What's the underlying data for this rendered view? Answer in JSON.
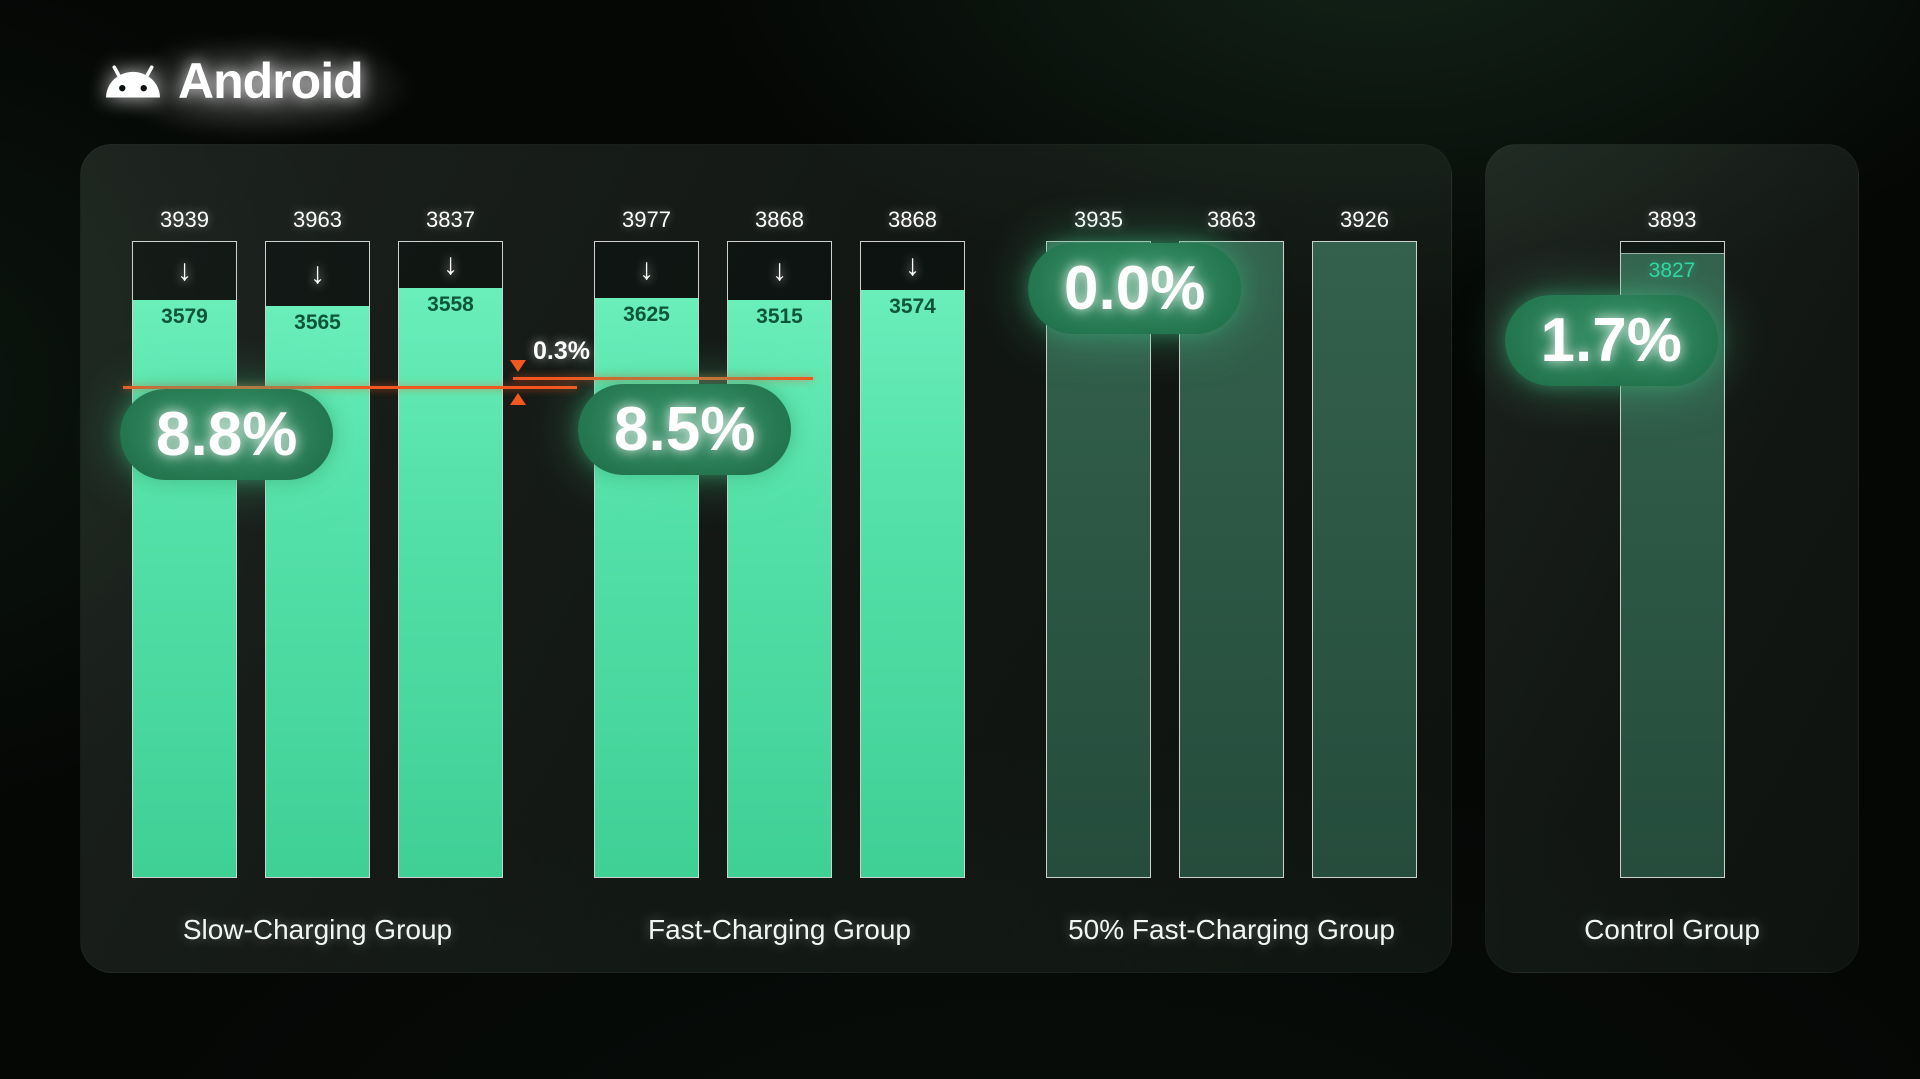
{
  "logo": {
    "text": "Android"
  },
  "icons": {
    "down_arrow": "↓"
  },
  "chart_data": {
    "type": "bar",
    "title": "",
    "ylim_note": "bars normalized to initial capacity; fill = final/initial",
    "groups": [
      {
        "label": "Slow-Charging Group",
        "loss_badge": "8.8%",
        "bar_style": "bright",
        "bars": [
          {
            "initial": 3939,
            "final": 3579
          },
          {
            "initial": 3963,
            "final": 3565
          },
          {
            "initial": 3837,
            "final": 3558
          }
        ]
      },
      {
        "label": "Fast-Charging Group",
        "loss_badge": "8.5%",
        "bar_style": "bright",
        "bars": [
          {
            "initial": 3977,
            "final": 3625
          },
          {
            "initial": 3868,
            "final": 3515
          },
          {
            "initial": 3868,
            "final": 3574
          }
        ]
      },
      {
        "label": "50% Fast-Charging Group",
        "loss_badge": "0.0%",
        "bar_style": "dark",
        "bars": [
          {
            "initial": 3935
          },
          {
            "initial": 3863
          },
          {
            "initial": 3926
          }
        ]
      }
    ],
    "control_group": {
      "label": "Control Group",
      "loss_badge": "1.7%",
      "bar_style": "dark",
      "bars": [
        {
          "initial": 3893,
          "final": 3827
        }
      ]
    },
    "annotation": {
      "label": "0.3%"
    },
    "colors": {
      "bright_bar": "#55e1a9",
      "dark_bar": "#2c5a46",
      "badge_bg": "#1f6f4a",
      "annotation_line": "#f2571f",
      "background": "#050705"
    }
  }
}
